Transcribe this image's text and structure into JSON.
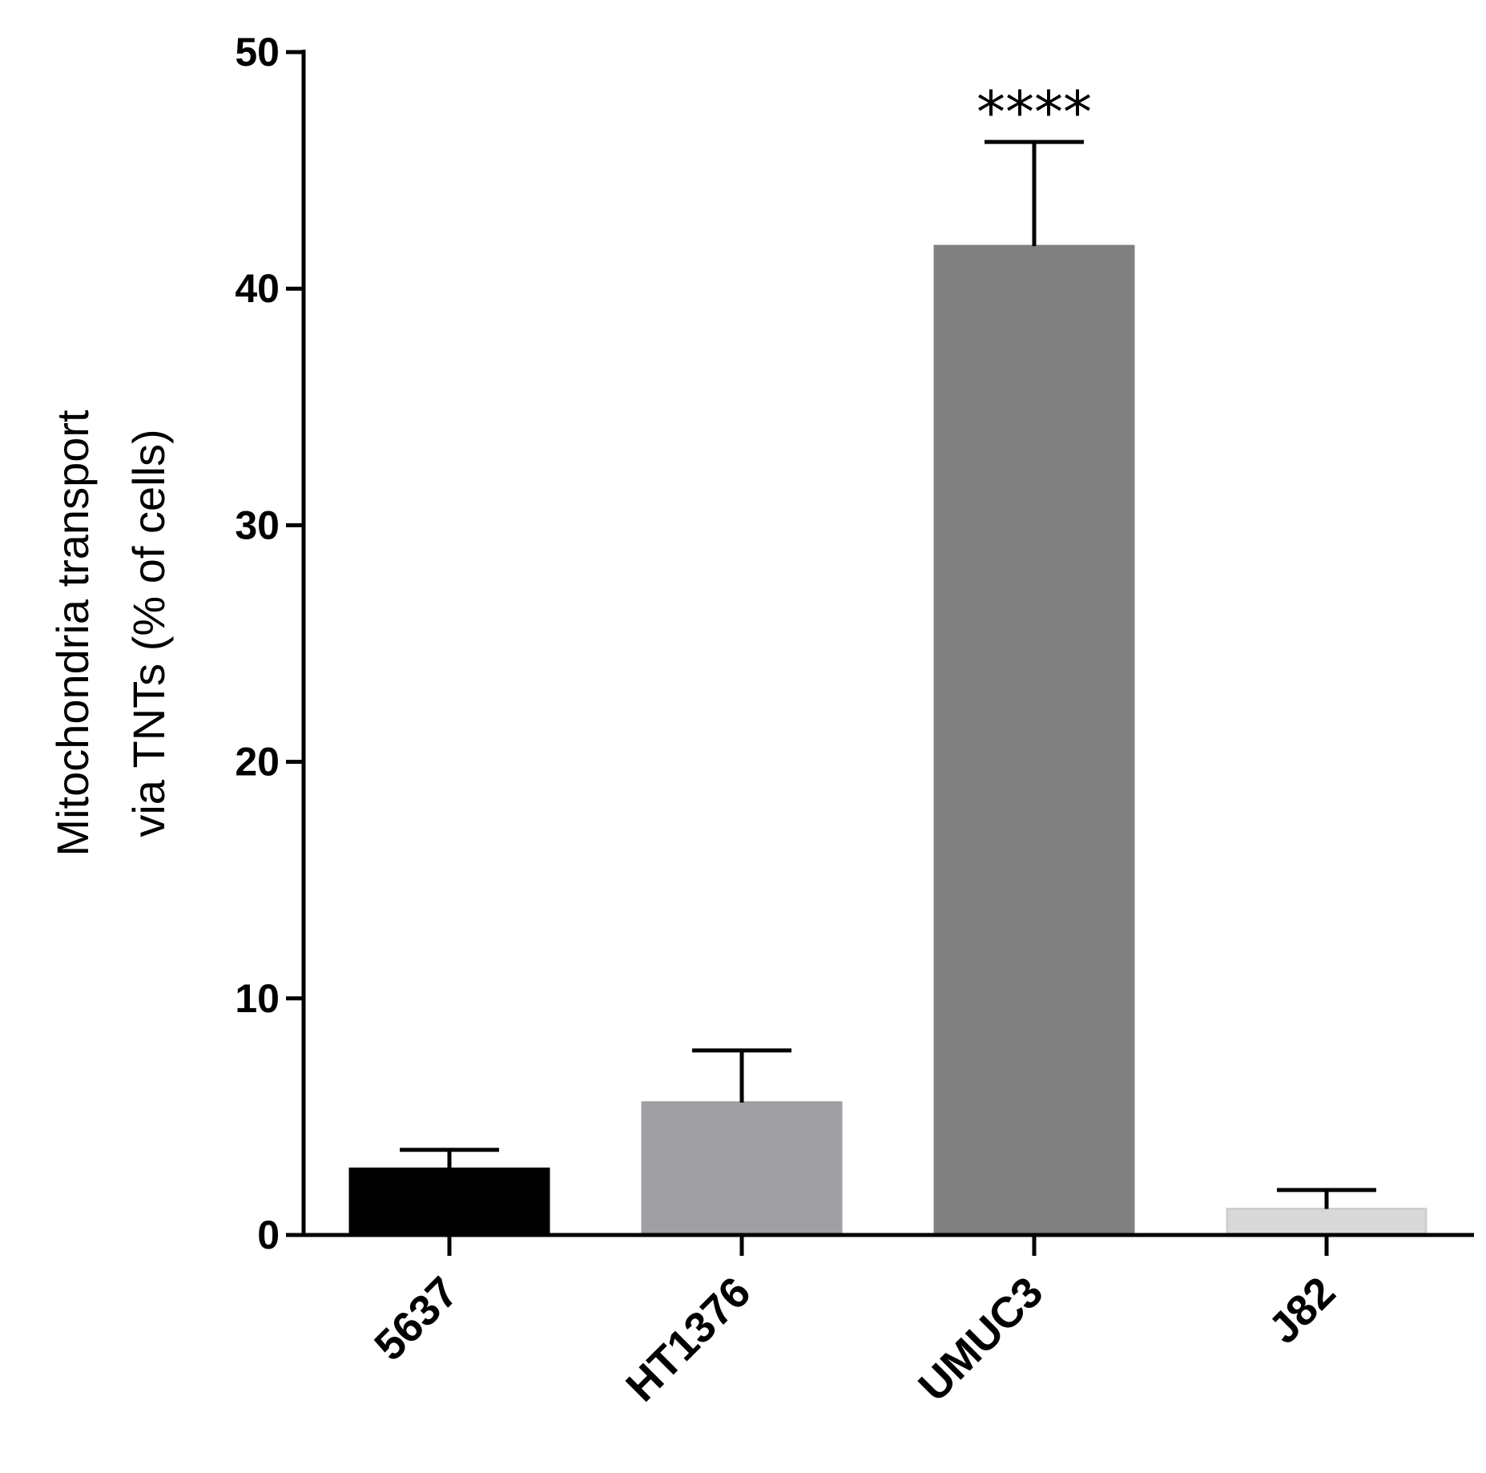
{
  "chart_data": {
    "type": "bar",
    "categories": [
      "5637",
      "HT1376",
      "UMUC3",
      "J82"
    ],
    "values": [
      2.8,
      5.6,
      41.8,
      1.1
    ],
    "errors": [
      0.8,
      2.2,
      4.4,
      0.8
    ],
    "colors": [
      "#000000",
      "#9e9ea3",
      "#808080",
      "#d9d9d9"
    ],
    "ylabel_line1": "Mitochondria transport",
    "ylabel_line2": "via TNTs  (% of cells)",
    "yticks": [
      0,
      10,
      20,
      30,
      40,
      50
    ],
    "ylim": [
      0,
      50
    ],
    "annotation": {
      "text": "****",
      "category": "UMUC3"
    },
    "grid": false,
    "legend": "none"
  }
}
